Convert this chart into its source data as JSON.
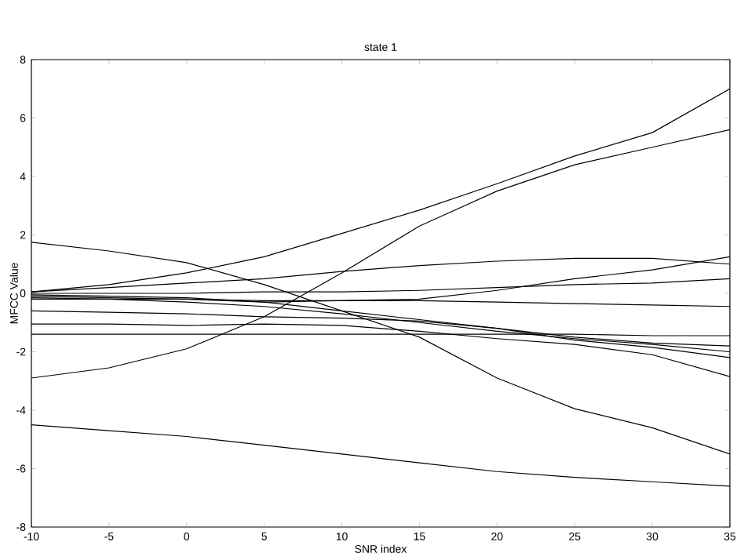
{
  "chart_data": {
    "type": "line",
    "title": "state 1",
    "xlabel": "SNR index",
    "ylabel": "MFCC Value",
    "x": [
      -10,
      -5,
      0,
      5,
      10,
      15,
      20,
      25,
      30,
      35
    ],
    "xlim": [
      -10,
      35
    ],
    "xticks": [
      -10,
      -5,
      0,
      5,
      10,
      15,
      20,
      25,
      30,
      35
    ],
    "ylim": [
      -8,
      8
    ],
    "yticks": [
      -8,
      -6,
      -4,
      -2,
      0,
      2,
      4,
      6,
      8
    ],
    "series": [
      {
        "color": "#000000",
        "values": [
          0.05,
          0.3,
          0.7,
          1.25,
          2.05,
          2.85,
          3.75,
          4.7,
          5.5,
          7.0
        ]
      },
      {
        "color": "#000000",
        "values": [
          -2.9,
          -2.55,
          -1.9,
          -0.8,
          0.7,
          2.3,
          3.5,
          4.4,
          5.0,
          5.6
        ]
      },
      {
        "color": "#000000",
        "values": [
          1.75,
          1.45,
          1.05,
          0.3,
          -0.6,
          -1.5,
          -2.9,
          -3.95,
          -4.6,
          -5.5
        ]
      },
      {
        "color": "#000000",
        "values": [
          -4.5,
          -4.7,
          -4.9,
          -5.2,
          -5.5,
          -5.8,
          -6.1,
          -6.3,
          -6.45,
          -6.6
        ]
      },
      {
        "color": "#000000",
        "values": [
          0.05,
          0.2,
          0.35,
          0.5,
          0.75,
          0.95,
          1.1,
          1.2,
          1.2,
          1.0
        ]
      },
      {
        "color": "#000000",
        "values": [
          -0.1,
          -0.15,
          -0.2,
          -0.3,
          -0.25,
          -0.2,
          0.1,
          0.5,
          0.8,
          1.25
        ]
      },
      {
        "color": "#000000",
        "values": [
          0.0,
          0.0,
          0.0,
          0.05,
          0.05,
          0.1,
          0.2,
          0.3,
          0.35,
          0.5
        ]
      },
      {
        "color": "#000000",
        "values": [
          -0.2,
          -0.2,
          -0.2,
          -0.25,
          -0.25,
          -0.25,
          -0.3,
          -0.35,
          -0.4,
          -0.45
        ]
      },
      {
        "color": "#000000",
        "values": [
          -1.4,
          -1.4,
          -1.4,
          -1.4,
          -1.4,
          -1.4,
          -1.4,
          -1.4,
          -1.45,
          -1.45
        ]
      },
      {
        "color": "#000000",
        "values": [
          -1.05,
          -1.05,
          -1.1,
          -1.05,
          -1.1,
          -1.3,
          -1.55,
          -1.75,
          -2.1,
          -2.85
        ]
      },
      {
        "color": "#000000",
        "values": [
          -0.6,
          -0.65,
          -0.7,
          -0.8,
          -0.85,
          -0.95,
          -1.2,
          -1.5,
          -1.7,
          -1.8
        ]
      },
      {
        "color": "#000000",
        "values": [
          -0.05,
          -0.1,
          -0.15,
          -0.3,
          -0.6,
          -0.9,
          -1.2,
          -1.6,
          -1.85,
          -2.2
        ]
      },
      {
        "color": "#000000",
        "values": [
          -0.15,
          -0.2,
          -0.3,
          -0.45,
          -0.7,
          -1.0,
          -1.3,
          -1.55,
          -1.75,
          -2.0
        ]
      }
    ]
  }
}
